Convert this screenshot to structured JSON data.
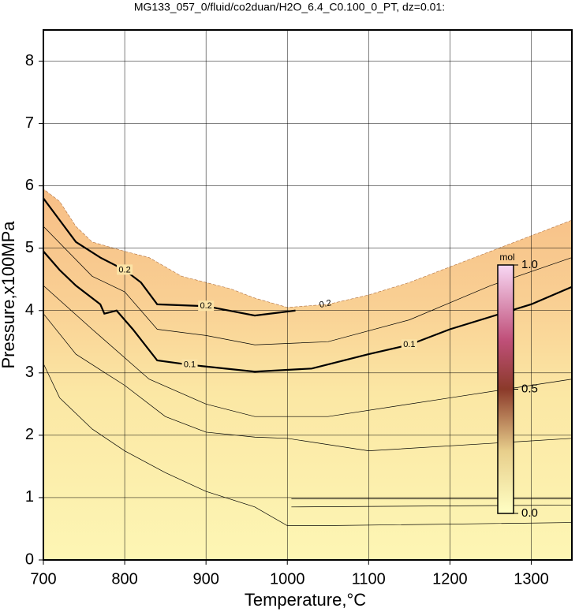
{
  "chart_data": {
    "type": "contour",
    "title": "MG133_057_0/fluid/co2duan/H2O_6.4_C0.100_0_PT, dz=0.01:",
    "x_label": "Temperature,°C",
    "y_label": "Pressure,x100MPa",
    "xlim": [
      700,
      1350
    ],
    "ylim": [
      0,
      8.5
    ],
    "xticks": [
      700,
      800,
      900,
      1000,
      1100,
      1200,
      1300
    ],
    "yticks": [
      0,
      1,
      2,
      3,
      4,
      5,
      6,
      7,
      8
    ],
    "grid": true,
    "region": {
      "x": [
        700,
        720,
        740,
        760,
        800,
        830,
        870,
        930,
        960,
        1000,
        1050,
        1100,
        1150,
        1200,
        1250,
        1300,
        1350
      ],
      "y": [
        5.95,
        5.75,
        5.35,
        5.1,
        4.95,
        4.85,
        4.55,
        4.35,
        4.2,
        4.05,
        4.1,
        4.25,
        4.45,
        4.7,
        4.95,
        5.2,
        5.45
      ]
    },
    "series": [
      {
        "name": "0.2",
        "x": [
          700,
          720,
          740,
          770,
          800,
          820,
          840,
          900,
          960,
          1010
        ],
        "y": [
          5.8,
          5.45,
          5.1,
          4.85,
          4.65,
          4.45,
          4.1,
          4.07,
          3.92,
          4.0
        ]
      },
      {
        "name": "0.1",
        "x": [
          700,
          720,
          740,
          770,
          775,
          790,
          810,
          840,
          880,
          960,
          1030,
          1100,
          1150,
          1200,
          1300,
          1350
        ],
        "y": [
          4.95,
          4.65,
          4.4,
          4.1,
          3.95,
          4.0,
          3.7,
          3.2,
          3.13,
          3.02,
          3.07,
          3.3,
          3.45,
          3.7,
          4.1,
          4.38
        ]
      },
      {
        "x": [
          700,
          760,
          800,
          840,
          900,
          960,
          1050,
          1150,
          1250,
          1350
        ],
        "y": [
          5.35,
          4.55,
          4.3,
          3.7,
          3.6,
          3.45,
          3.5,
          3.85,
          4.4,
          4.85
        ]
      },
      {
        "x": [
          700,
          760,
          830,
          900,
          960,
          1050,
          1200,
          1350
        ],
        "y": [
          4.4,
          3.7,
          2.9,
          2.5,
          2.3,
          2.3,
          2.6,
          2.9
        ]
      },
      {
        "x": [
          700,
          740,
          800,
          850,
          900,
          960,
          1000,
          1100,
          1350
        ],
        "y": [
          3.95,
          3.3,
          2.8,
          2.3,
          2.05,
          1.97,
          1.95,
          1.75,
          1.95
        ]
      },
      {
        "x": [
          700,
          720,
          760,
          800,
          850,
          900,
          960,
          1000,
          1050,
          1350
        ],
        "y": [
          3.15,
          2.6,
          2.1,
          1.75,
          1.4,
          1.1,
          0.85,
          0.55,
          0.55,
          0.6
        ]
      },
      {
        "x": [
          1005,
          1350
        ],
        "y": [
          0.98,
          0.98
        ]
      },
      {
        "x": [
          1005,
          1350
        ],
        "y": [
          0.85,
          0.88
        ]
      }
    ],
    "colorbar": {
      "label": "mol",
      "lim": [
        0,
        1
      ],
      "ticks": [
        {
          "value": 0,
          "label": "0.0"
        },
        {
          "value": 0.5,
          "label": "0.5"
        },
        {
          "value": 1,
          "label": "1.0"
        }
      ]
    }
  }
}
